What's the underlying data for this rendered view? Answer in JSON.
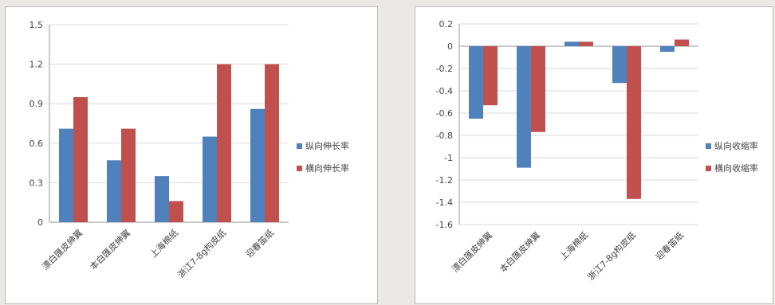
{
  "chart_data": [
    {
      "type": "bar",
      "categories": [
        "漂白匯皮紳翼",
        "本白匯皮紳翼",
        "上海棉纸",
        "浙江7-8g构皮纸",
        "迎春笛纸"
      ],
      "series": [
        {
          "name": "纵向伸长率",
          "color": "#4f81bd",
          "values": [
            0.71,
            0.47,
            0.35,
            0.65,
            0.86
          ]
        },
        {
          "name": "横向伸长率",
          "color": "#c0504d",
          "values": [
            0.95,
            0.71,
            0.16,
            1.2,
            1.2
          ]
        }
      ],
      "ylim": [
        0,
        1.5
      ],
      "yticks": [
        "1.5",
        "1.2",
        "0.9",
        "0.6",
        "0.3",
        "0"
      ],
      "ytick_values": [
        1.5,
        1.2,
        0.9,
        0.6,
        0.3,
        0
      ],
      "grid": true,
      "legend": "right"
    },
    {
      "type": "bar",
      "categories": [
        "漂白匯皮紳翼",
        "本白匯皮紳翼",
        "上海棉纸",
        "浙江7-8g构皮纸",
        "迎春笛纸"
      ],
      "series": [
        {
          "name": "纵向收缩率",
          "color": "#4f81bd",
          "values": [
            -0.65,
            -1.09,
            0.04,
            -0.33,
            -0.05
          ]
        },
        {
          "name": "横向收缩率",
          "color": "#c0504d",
          "values": [
            -0.53,
            -0.77,
            0.04,
            -1.37,
            0.06
          ]
        }
      ],
      "ylim": [
        -1.6,
        0.2
      ],
      "yticks": [
        "0.2",
        "0",
        "-0.2",
        "-0.4",
        "-0.6",
        "-0.8",
        "-1",
        "-1.2",
        "-1.4",
        "-1.6"
      ],
      "ytick_values": [
        0.2,
        0,
        -0.2,
        -0.4,
        -0.6,
        -0.8,
        -1,
        -1.2,
        -1.4,
        -1.6
      ],
      "grid": true,
      "legend": "right"
    }
  ]
}
